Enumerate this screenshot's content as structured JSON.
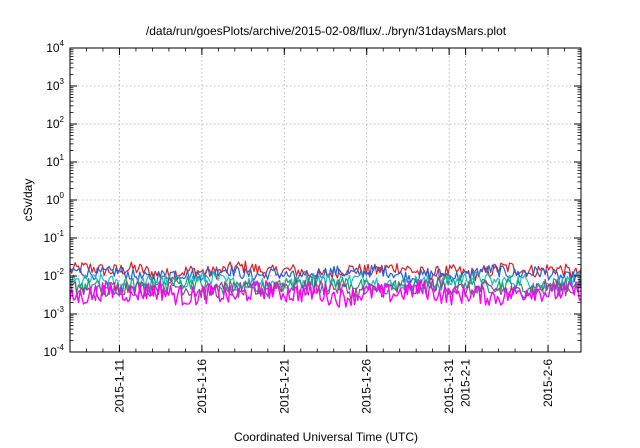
{
  "chart_data": {
    "type": "line",
    "title": "/data/run/goesPlots/archive/2015-02-08/flux/../bryn/31daysMars.plot",
    "xlabel": "Coordinated Universal Time (UTC)",
    "ylabel": "cSv/day",
    "y_scale": "log",
    "ylim": [
      0.0001,
      10000
    ],
    "y_ticks": [
      {
        "base": "10",
        "exp": "-4",
        "value": 0.0001
      },
      {
        "base": "10",
        "exp": "-3",
        "value": 0.001
      },
      {
        "base": "10",
        "exp": "-2",
        "value": 0.01
      },
      {
        "base": "10",
        "exp": "-1",
        "value": 0.1
      },
      {
        "base": "10",
        "exp": "0",
        "value": 1
      },
      {
        "base": "10",
        "exp": "1",
        "value": 10
      },
      {
        "base": "10",
        "exp": "2",
        "value": 100
      },
      {
        "base": "10",
        "exp": "3",
        "value": 1000
      },
      {
        "base": "10",
        "exp": "4",
        "value": 10000
      }
    ],
    "x_range": [
      "2015-01-08",
      "2015-02-08"
    ],
    "x_ticks": [
      {
        "label": "2015-1-11",
        "date": "2015-01-11"
      },
      {
        "label": "2015-1-16",
        "date": "2015-01-16"
      },
      {
        "label": "2015-1-21",
        "date": "2015-01-21"
      },
      {
        "label": "2015-1-26",
        "date": "2015-01-26"
      },
      {
        "label": "2015-1-31",
        "date": "2015-01-31"
      },
      {
        "label": "2015-2-1",
        "date": "2015-02-01"
      },
      {
        "label": "2015-2-6",
        "date": "2015-02-06"
      }
    ],
    "grid": true,
    "legend": "none",
    "series": [
      {
        "color": "#e41a1c",
        "level": 0.0135,
        "spread": 0.18
      },
      {
        "color": "#1f5fe0",
        "level": 0.0115,
        "spread": 0.16
      },
      {
        "color": "#17c0c8",
        "level": 0.0072,
        "spread": 0.18
      },
      {
        "color": "#1aa06a",
        "level": 0.0056,
        "spread": 0.2
      },
      {
        "color": "#8a4a8a",
        "level": 0.0046,
        "spread": 0.22
      },
      {
        "color": "#ff00ff",
        "level": 0.0035,
        "spread": 0.26
      }
    ]
  }
}
